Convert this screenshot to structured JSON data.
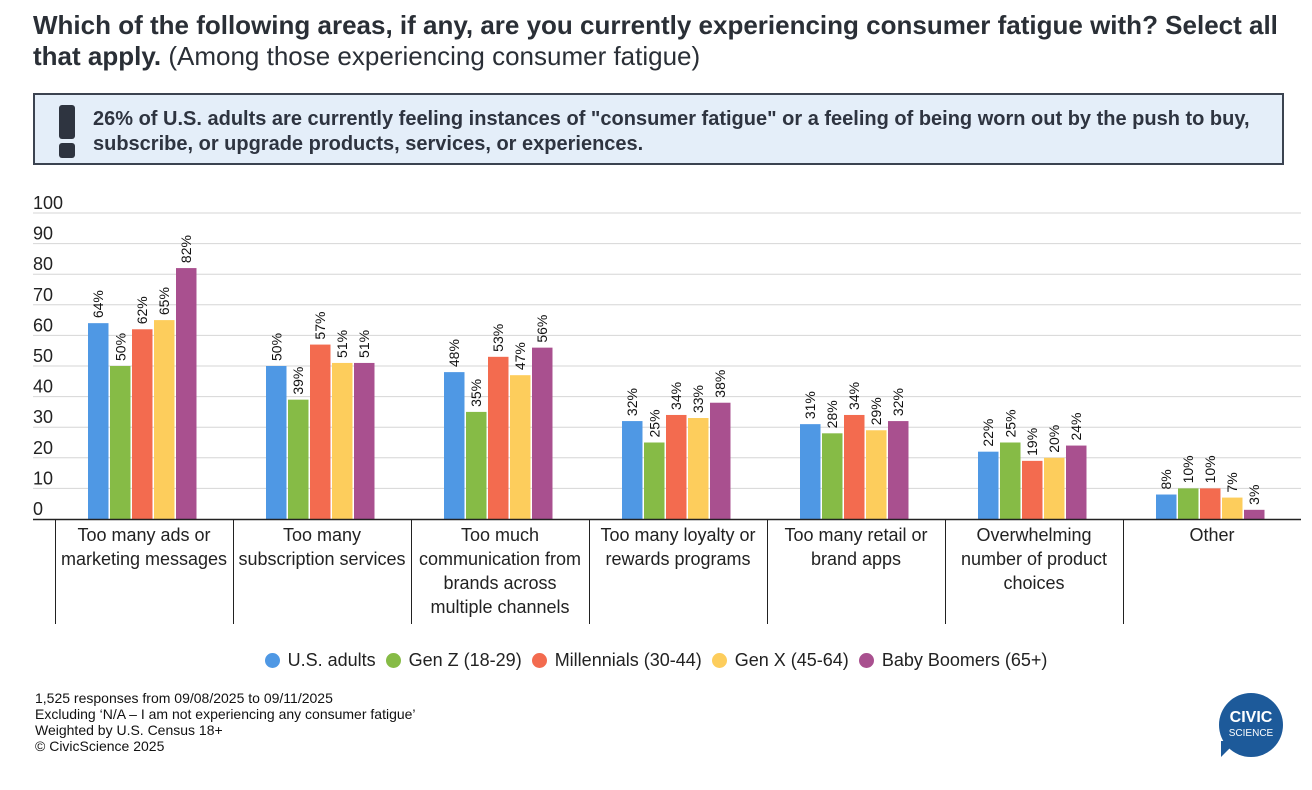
{
  "title": {
    "question": "Which of the following areas, if any, are you currently experiencing consumer fatigue with? Select all that apply.",
    "subtitle": "(Among those experiencing consumer fatigue)"
  },
  "callout": {
    "text": "26% of U.S. adults are currently feeling instances of \"consumer fatigue\" or a feeling of being worn out by the push to buy, subscribe, or upgrade products, services, or experiences.",
    "icon": "exclamation-icon"
  },
  "chart_data": {
    "type": "bar",
    "categories": [
      "Too many ads or marketing messages",
      "Too many subscription services",
      "Too much communication from brands across multiple channels",
      "Too many loyalty or rewards programs",
      "Too many retail or brand apps",
      "Overwhelming number of product choices",
      "Other"
    ],
    "series": [
      {
        "name": "U.S. adults",
        "color": "#4f98e4",
        "values": [
          64,
          50,
          48,
          32,
          31,
          22,
          8
        ],
        "labels": [
          "64%",
          "50%",
          "48%",
          "32%",
          "31%",
          "22%",
          "8%"
        ]
      },
      {
        "name": "Gen Z (18-29)",
        "color": "#86bb46",
        "values": [
          50,
          39,
          35,
          25,
          28,
          25,
          10
        ],
        "labels": [
          "50%",
          "39%",
          "35%",
          "25%",
          "28%",
          "25%",
          "10%"
        ]
      },
      {
        "name": "Millennials (30-44)",
        "color": "#f36b4f",
        "values": [
          62,
          57,
          53,
          34,
          34,
          19,
          10
        ],
        "labels": [
          "62%",
          "57%",
          "53%",
          "34%",
          "34%",
          "19%",
          "10%"
        ]
      },
      {
        "name": "Gen X (45-64)",
        "color": "#fdcd5c",
        "values": [
          65,
          51,
          47,
          33,
          29,
          20,
          7
        ],
        "labels": [
          "65%",
          "51%",
          "47%",
          "33%",
          "29%",
          "20%",
          "7%"
        ]
      },
      {
        "name": "Baby Boomers (65+)",
        "color": "#a9508f",
        "values": [
          82,
          51,
          56,
          38,
          32,
          24,
          3
        ],
        "labels": [
          "82%",
          "51%",
          "56%",
          "38%",
          "32%",
          "24%",
          "3%"
        ]
      }
    ],
    "ylim": [
      0,
      100
    ],
    "yticks": [
      0,
      10,
      20,
      30,
      40,
      50,
      60,
      70,
      80,
      90,
      100
    ],
    "ytick_labels": [
      "0",
      "10",
      "20",
      "30",
      "40",
      "50",
      "60",
      "70",
      "80",
      "90",
      "100"
    ],
    "grid": true,
    "legend": "bottom"
  },
  "footer": [
    "1,525 responses from 09/08/2025 to 09/11/2025",
    "Excluding ‘N/A – I am not experiencing any consumer fatigue’",
    "Weighted by U.S. Census 18+",
    "© CivicScience 2025"
  ],
  "logo": {
    "line1": "CIVIC",
    "line2": "SCIENCE"
  }
}
